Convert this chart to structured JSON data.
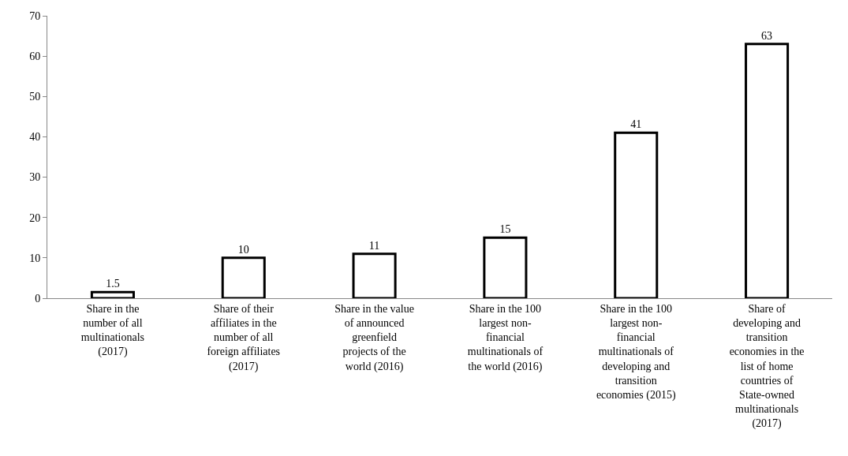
{
  "chart_data": {
    "type": "bar",
    "categories": [
      "Share in the number of all multinationals (2017)",
      "Share of their affiliates in the number of all foreign affiliates (2017)",
      "Share in the value of announced greenfield projects of the world (2016)",
      "Share in the 100 largest non-financial multinationals of the world (2016)",
      "Share in the 100 largest non-financial multinationals of developing and transition economies (2015)",
      "Share of developing and transition economies in the list of home countries of State-owned multinationals (2017)"
    ],
    "values": [
      1.5,
      10,
      11,
      15,
      41,
      63
    ],
    "color": "#ffffff",
    "ylim": [
      0,
      70
    ],
    "yticks": [
      0,
      10,
      20,
      30,
      40,
      50,
      60,
      70
    ],
    "data_labels": true
  }
}
